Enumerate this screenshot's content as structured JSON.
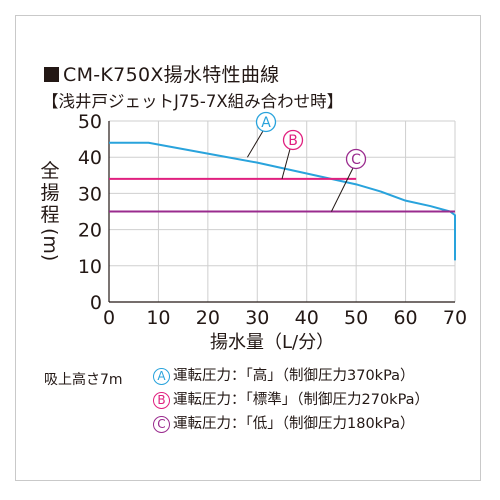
{
  "title": "CM-K750X揚水特性曲線",
  "subtitle": "【浅井戸ジェットJ75-7X組み合わせ時】",
  "colors": {
    "A": "#29a3dc",
    "B": "#e0207f",
    "C": "#9a2b8e",
    "grid": "#cfcfcf",
    "axis": "#231815"
  },
  "condition": "吸上高さ7m",
  "legend": [
    {
      "letter": "A",
      "text": "運転圧力：「高」（制御圧力370kPa）",
      "color": "#29a3dc"
    },
    {
      "letter": "B",
      "text": "運転圧力：「標準」（制御圧力270kPa）",
      "color": "#e0207f"
    },
    {
      "letter": "C",
      "text": "運転圧力：「低」（制御圧力180kPa）",
      "color": "#9a2b8e"
    }
  ],
  "chart_data": {
    "type": "line",
    "xlabel": "揚水量（L/分）",
    "ylabel": [
      "全",
      "揚",
      "程",
      "(m)"
    ],
    "xlim": [
      0,
      70
    ],
    "ylim": [
      0,
      50
    ],
    "xticks": [
      0,
      10,
      20,
      30,
      40,
      50,
      60,
      70
    ],
    "yticks": [
      0,
      10,
      20,
      30,
      40,
      50
    ],
    "grid": true,
    "series": [
      {
        "name": "A",
        "x": [
          0,
          8,
          20,
          30,
          40,
          50,
          55,
          60,
          65,
          69,
          70,
          70
        ],
        "y": [
          44,
          44,
          41,
          38.5,
          35.5,
          32.5,
          30.5,
          28,
          26.5,
          25,
          24,
          11.5
        ]
      },
      {
        "name": "B",
        "x": [
          0,
          50
        ],
        "y": [
          34,
          34
        ]
      },
      {
        "name": "C",
        "x": [
          0,
          70
        ],
        "y": [
          25,
          25
        ]
      }
    ],
    "annotations": [
      {
        "label": "A",
        "arrow_to": [
          28,
          40
        ]
      },
      {
        "label": "B",
        "arrow_to": [
          35,
          34
        ]
      },
      {
        "label": "C",
        "arrow_to": [
          45,
          25
        ]
      }
    ]
  }
}
